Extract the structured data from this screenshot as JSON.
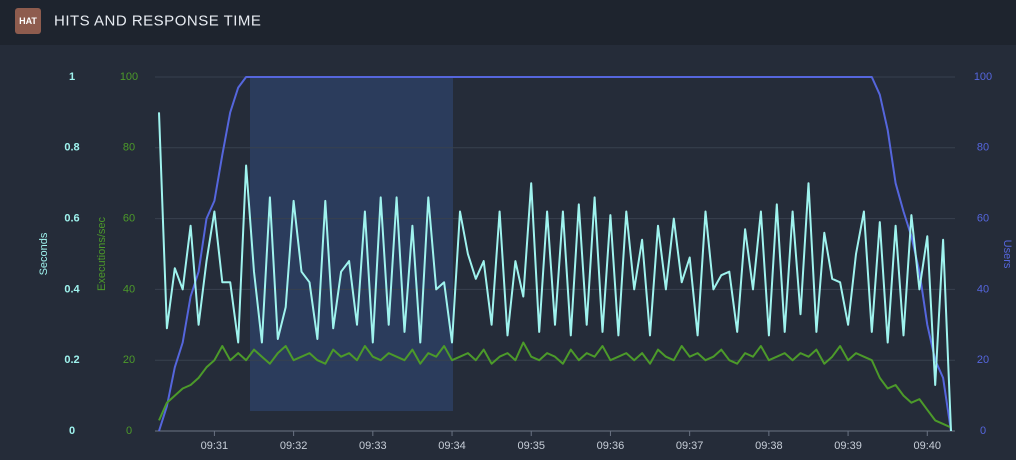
{
  "header": {
    "badge": "HAT",
    "title": "HITS AND RESPONSE TIME"
  },
  "chart_data": {
    "type": "line",
    "ylabel": "Seconds",
    "y2label": "Executions/sec",
    "y3label": "Users",
    "xlim": [
      30.25,
      40.35
    ],
    "xticks": [
      {
        "value": 31,
        "label": "09:31"
      },
      {
        "value": 32,
        "label": "09:32"
      },
      {
        "value": 33,
        "label": "09:33"
      },
      {
        "value": 34,
        "label": "09:34"
      },
      {
        "value": 35,
        "label": "09:35"
      },
      {
        "value": 36,
        "label": "09:36"
      },
      {
        "value": 37,
        "label": "09:37"
      },
      {
        "value": 38,
        "label": "09:38"
      },
      {
        "value": 39,
        "label": "09:39"
      },
      {
        "value": 40,
        "label": "09:40"
      }
    ],
    "ylim": [
      0,
      1
    ],
    "yticks": [
      0,
      0.2,
      0.4,
      0.6,
      0.8,
      1
    ],
    "y2lim": [
      0,
      100
    ],
    "y2ticks": [
      0,
      20,
      40,
      60,
      80,
      100
    ],
    "y3lim": [
      0,
      100
    ],
    "y3ticks": [
      0,
      20,
      40,
      60,
      80,
      100
    ],
    "grid": true,
    "x": [
      30.3,
      30.4,
      30.5,
      30.6,
      30.7,
      30.8,
      30.9,
      31.0,
      31.1,
      31.2,
      31.3,
      31.4,
      31.5,
      31.6,
      31.7,
      31.8,
      31.9,
      32.0,
      32.1,
      32.2,
      32.3,
      32.4,
      32.5,
      32.6,
      32.7,
      32.8,
      32.9,
      33.0,
      33.1,
      33.2,
      33.3,
      33.4,
      33.5,
      33.6,
      33.7,
      33.8,
      33.9,
      34.0,
      34.1,
      34.2,
      34.3,
      34.4,
      34.5,
      34.6,
      34.7,
      34.8,
      34.9,
      35.0,
      35.1,
      35.2,
      35.3,
      35.4,
      35.5,
      35.6,
      35.7,
      35.8,
      35.9,
      36.0,
      36.1,
      36.2,
      36.3,
      36.4,
      36.5,
      36.6,
      36.7,
      36.8,
      36.9,
      37.0,
      37.1,
      37.2,
      37.3,
      37.4,
      37.5,
      37.6,
      37.7,
      37.8,
      37.9,
      38.0,
      38.1,
      38.2,
      38.3,
      38.4,
      38.5,
      38.6,
      38.7,
      38.8,
      38.9,
      39.0,
      39.1,
      39.2,
      39.3,
      39.4,
      39.5,
      39.6,
      39.7,
      39.8,
      39.9,
      40.0,
      40.1,
      40.2,
      40.3
    ],
    "series": [
      {
        "axis": "y3",
        "color": "#5566dd",
        "values": [
          0,
          7,
          18,
          25,
          38,
          45,
          60,
          65,
          78,
          90,
          97,
          100,
          100,
          100,
          100,
          100,
          100,
          100,
          100,
          100,
          100,
          100,
          100,
          100,
          100,
          100,
          100,
          100,
          100,
          100,
          100,
          100,
          100,
          100,
          100,
          100,
          100,
          100,
          100,
          100,
          100,
          100,
          100,
          100,
          100,
          100,
          100,
          100,
          100,
          100,
          100,
          100,
          100,
          100,
          100,
          100,
          100,
          100,
          100,
          100,
          100,
          100,
          100,
          100,
          100,
          100,
          100,
          100,
          100,
          100,
          100,
          100,
          100,
          100,
          100,
          100,
          100,
          100,
          100,
          100,
          100,
          100,
          100,
          100,
          100,
          100,
          100,
          100,
          100,
          100,
          100,
          95,
          85,
          70,
          62,
          55,
          45,
          30,
          20,
          15,
          0
        ]
      },
      {
        "axis": "y2",
        "color": "#4c9a2a",
        "values": [
          3,
          8,
          10,
          12,
          13,
          15,
          18,
          20,
          24,
          20,
          22,
          20,
          23,
          21,
          19,
          22,
          24,
          20,
          21,
          22,
          20,
          19,
          23,
          21,
          22,
          20,
          24,
          21,
          20,
          22,
          21,
          20,
          23,
          19,
          22,
          21,
          24,
          20,
          21,
          22,
          20,
          23,
          19,
          21,
          22,
          20,
          25,
          21,
          20,
          22,
          21,
          19,
          23,
          20,
          22,
          21,
          24,
          20,
          21,
          22,
          20,
          22,
          19,
          23,
          21,
          20,
          24,
          21,
          22,
          20,
          21,
          23,
          20,
          19,
          22,
          21,
          24,
          20,
          21,
          22,
          20,
          22,
          21,
          23,
          19,
          21,
          24,
          20,
          22,
          21,
          20,
          15,
          12,
          13,
          10,
          8,
          9,
          6,
          3,
          2,
          1
        ]
      },
      {
        "axis": "y",
        "color": "#9ff3ee",
        "values": [
          0.9,
          0.29,
          0.46,
          0.4,
          0.58,
          0.3,
          0.48,
          0.62,
          0.42,
          0.42,
          0.25,
          0.75,
          0.45,
          0.25,
          0.66,
          0.26,
          0.35,
          0.65,
          0.45,
          0.42,
          0.26,
          0.65,
          0.29,
          0.45,
          0.48,
          0.3,
          0.62,
          0.25,
          0.66,
          0.3,
          0.66,
          0.28,
          0.58,
          0.25,
          0.66,
          0.4,
          0.42,
          0.25,
          0.62,
          0.5,
          0.43,
          0.48,
          0.3,
          0.62,
          0.27,
          0.48,
          0.38,
          0.7,
          0.28,
          0.62,
          0.3,
          0.62,
          0.27,
          0.64,
          0.3,
          0.66,
          0.28,
          0.61,
          0.27,
          0.62,
          0.4,
          0.54,
          0.27,
          0.58,
          0.4,
          0.6,
          0.42,
          0.49,
          0.27,
          0.62,
          0.4,
          0.44,
          0.45,
          0.28,
          0.57,
          0.4,
          0.62,
          0.27,
          0.64,
          0.28,
          0.62,
          0.33,
          0.7,
          0.28,
          0.56,
          0.43,
          0.42,
          0.3,
          0.5,
          0.62,
          0.28,
          0.59,
          0.25,
          0.58,
          0.27,
          0.61,
          0.4,
          0.55,
          0.13,
          0.54,
          0.0
        ]
      }
    ]
  }
}
